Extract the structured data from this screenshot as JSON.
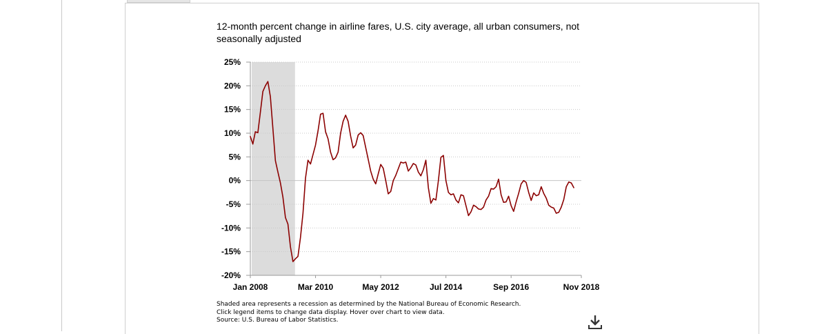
{
  "chart_data": {
    "type": "line",
    "title": "12-month percent change in airline fares, U.S. city average, all urban consumers, not seasonally adjusted",
    "xlabel": "",
    "ylabel": "",
    "ylim": [
      -20,
      25
    ],
    "yticks": [
      "25%",
      "20%",
      "15%",
      "10%",
      "5%",
      "0%",
      "-5%",
      "-10%",
      "-15%",
      "-20%"
    ],
    "xticks": [
      "Jan 2008",
      "Mar 2010",
      "May 2012",
      "Jul 2014",
      "Sep 2016",
      "Nov 2018"
    ],
    "x_start": "Jan 2008",
    "x_end": "Dec 2018",
    "recession": {
      "start": "Jan 2008",
      "end": "Jun 2009",
      "label": "Recession"
    },
    "grid": true,
    "line_color": "#8b0000",
    "shade_color": "#dcdcdc",
    "series": [
      {
        "values": [
          9.3,
          7.7,
          10.3,
          10.1,
          14.4,
          18.8,
          20.0,
          20.9,
          17.7,
          11.0,
          4.2,
          1.8,
          -0.5,
          -3.5,
          -7.8,
          -9.2,
          -14.0,
          -17.1,
          -16.5,
          -16.0,
          -12.0,
          -6.9,
          0.5,
          4.3,
          3.5,
          5.5,
          7.5,
          10.5,
          14.0,
          14.2,
          10.3,
          8.8,
          6.0,
          4.4,
          4.8,
          6.0,
          10.0,
          12.5,
          13.8,
          12.5,
          9.4,
          6.9,
          7.5,
          9.6,
          10.1,
          9.5,
          7.0,
          4.5,
          2.0,
          0.3,
          -0.7,
          1.4,
          3.4,
          2.6,
          0.0,
          -2.8,
          -2.3,
          0.0,
          1.1,
          2.5,
          3.9,
          3.7,
          3.9,
          2.0,
          2.7,
          3.6,
          3.3,
          1.8,
          1.0,
          2.3,
          4.3,
          -1.5,
          -4.8,
          -3.8,
          -4.1,
          0.0,
          4.9,
          5.3,
          0.0,
          -2.5,
          -3.0,
          -2.8,
          -4.1,
          -4.7,
          -3.0,
          -3.2,
          -5.3,
          -7.4,
          -6.6,
          -5.2,
          -5.5,
          -6.0,
          -6.1,
          -5.6,
          -4.1,
          -3.3,
          -1.7,
          -1.8,
          -1.3,
          0.3,
          -3.0,
          -4.6,
          -4.5,
          -3.3,
          -5.3,
          -6.5,
          -4.5,
          -2.7,
          -0.7,
          0.0,
          -0.4,
          -2.5,
          -4.2,
          -2.6,
          -3.2,
          -3.0,
          -1.3,
          -2.7,
          -3.7,
          -5.2,
          -5.6,
          -5.8,
          -6.9,
          -6.7,
          -5.6,
          -4.0,
          -1.3,
          -0.3,
          -0.5,
          -1.5
        ]
      }
    ]
  },
  "footnotes": {
    "recession_note": "Shaded area represents a recession as determined by the National Bureau of Economic Research.",
    "legend_note": "Click legend items to change data display. Hover over chart to view data.",
    "source": "Source: U.S. Bureau of Labor Statistics."
  },
  "icons": {
    "download": "download-icon"
  }
}
